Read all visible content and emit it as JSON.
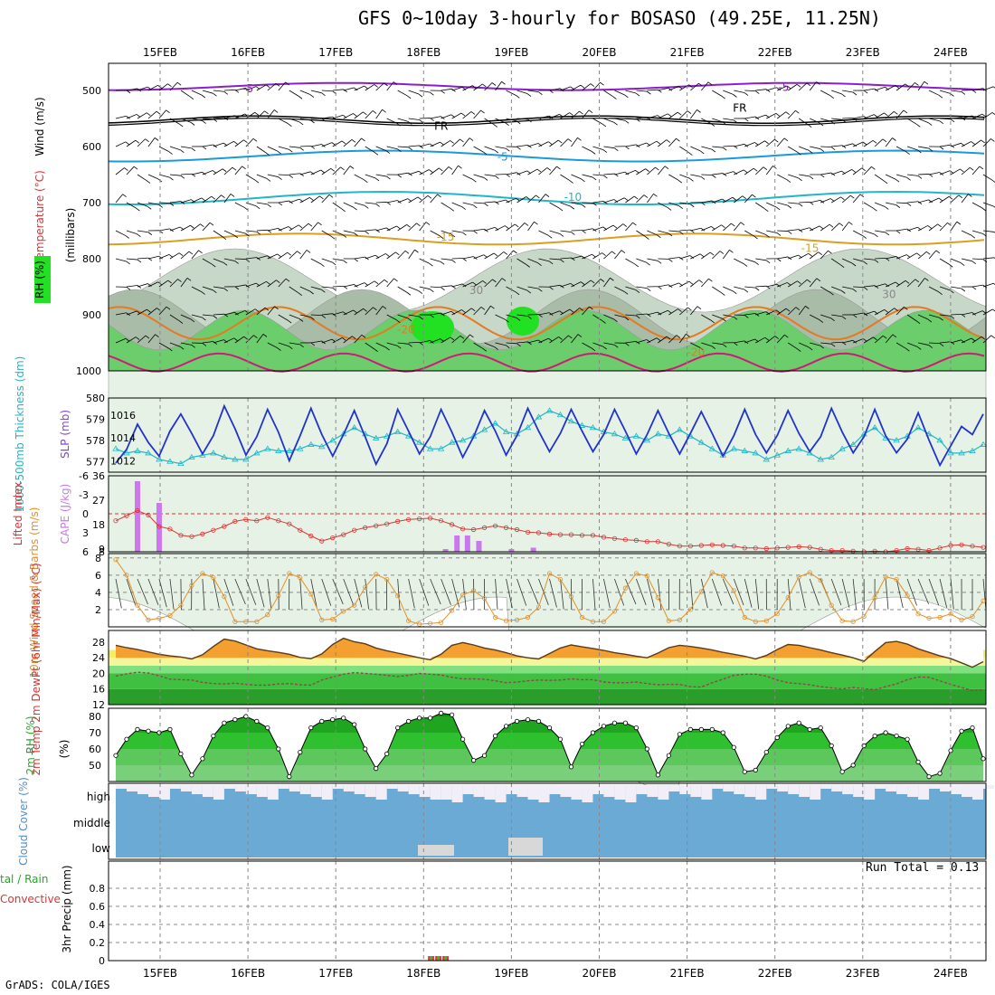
{
  "title": "GFS 0~10day 3-hourly for BOSASO (49.25E, 11.25N)",
  "footer": "GrADS: COLA/IGES",
  "run_total": "Run Total = 0.13",
  "dates": [
    "15FEB",
    "16FEB",
    "17FEB",
    "18FEB",
    "19FEB",
    "20FEB",
    "21FEB",
    "22FEB",
    "23FEB",
    "24FEB"
  ],
  "colors": {
    "grid": "#888888",
    "rh_light": "#e6f2e6",
    "rh_mid": "#c8d8c8",
    "rh_dark": "#a8bca8",
    "rh_green": "#6ccd6c",
    "rh_bright": "#22e022",
    "slp": "#2233cc",
    "thick": "#22b6c6",
    "li": "#dd3333",
    "cape": "#cc77ee",
    "wind10": "#e0902a",
    "temp": "#f3a030",
    "dew": "#50dd50",
    "rh2m": "#22cc22",
    "cloud": "#6aaad5",
    "precip_rain": "#33bb33",
    "precip_conv": "#ee3333"
  },
  "chart_data": [
    {
      "panel": "upper_air",
      "type": "heatmap",
      "ylabel_wind": "Wind (m/s)",
      "ylabel_temp": "Temperature (°C)",
      "ylabel_rh": "RH (%)",
      "ylabel_units": "(millibars)",
      "y_ticks": [
        "500",
        "600",
        "700",
        "800",
        "900",
        "1000"
      ],
      "ylim": [
        1000,
        470
      ],
      "isotherm_labels": [
        {
          "text": "-5",
          "p": 495,
          "day": 1.0
        },
        {
          "text": "-5",
          "p": 493,
          "day": 7.1
        },
        {
          "text": "FR",
          "p": 562,
          "day": 3.2
        },
        {
          "text": "FR",
          "p": 530,
          "day": 6.6
        },
        {
          "text": "-5",
          "p": 617,
          "day": 3.9
        },
        {
          "text": "-10",
          "p": 689,
          "day": 4.7
        },
        {
          "text": "-15",
          "p": 760,
          "day": 3.25
        },
        {
          "text": "-15",
          "p": 780,
          "day": 7.4
        },
        {
          "text": "-20",
          "p": 925,
          "day": 2.8
        },
        {
          "text": "-20",
          "p": 965,
          "day": 6.1
        },
        {
          "text": "30",
          "p": 855,
          "day": 3.6
        },
        {
          "text": "30",
          "p": 862,
          "day": 8.3
        }
      ]
    },
    {
      "panel": "slp_thickness",
      "type": "line",
      "ylabel_left": "1000-500mb Thickness (dm)",
      "ylabel_right": "SLP (mb)",
      "y_ticks_left": [
        "577",
        "578",
        "579",
        "580"
      ],
      "y_ticks_right": [
        "1012",
        "1014",
        "1016"
      ],
      "series": [
        {
          "name": "SLP (mb)",
          "ylim": [
            1011,
            1017.5
          ],
          "values": [
            1011.8,
            1013,
            1015.2,
            1013.6,
            1012.4,
            1014.6,
            1016.1,
            1014.4,
            1012.6,
            1014.2,
            1016.8,
            1014.8,
            1012.5,
            1014.1,
            1016.5,
            1014.5,
            1012,
            1014.2,
            1016.6,
            1014.3,
            1012.4,
            1014.3,
            1016.4,
            1014.1,
            1011.7,
            1013.5,
            1016.5,
            1014.6,
            1012.6,
            1014.1,
            1016.5,
            1014.5,
            1012.3,
            1014.1,
            1016.4,
            1014.6,
            1012.5,
            1014.2,
            1016.6,
            1014.6,
            1012.8,
            1014.4,
            1016.5,
            1014.6,
            1012.8,
            1014.3,
            1016.5,
            1014.6,
            1012.6,
            1014.3,
            1016.4,
            1014.4,
            1012.6,
            1014.4,
            1016.3,
            1014.4,
            1012.4,
            1014.2,
            1016.5,
            1014.3,
            1012.7,
            1014.2,
            1016.4,
            1014.4,
            1012.8,
            1014.1,
            1016.6,
            1014.5,
            1012.7,
            1014.1,
            1016.5,
            1014.2,
            1012.7,
            1013.9,
            1016.2,
            1013.8,
            1011.6,
            1013.3,
            1015,
            1014.3,
            1016.1
          ]
        },
        {
          "name": "1000-500mb Thickness (dm)",
          "ylim": [
            576.5,
            580
          ],
          "values": [
            577.6,
            577.4,
            577.5,
            577.4,
            577.1,
            577,
            576.9,
            577.2,
            577.3,
            577.4,
            577.2,
            577.1,
            577.1,
            577.4,
            577.6,
            577.5,
            577.5,
            577.6,
            577.8,
            577.7,
            578,
            578.3,
            578.6,
            578.3,
            578.1,
            578.2,
            578.4,
            578.2,
            577.9,
            577.6,
            577.6,
            577.9,
            578,
            578.2,
            578.5,
            578.8,
            578.4,
            578.3,
            578.6,
            579.1,
            579.4,
            579.2,
            578.9,
            578.7,
            578.6,
            578.4,
            578.3,
            578.1,
            578.2,
            578,
            578.3,
            578.2,
            578.5,
            578.2,
            577.9,
            577.6,
            577.3,
            577.6,
            577.5,
            577.4,
            577.1,
            577.3,
            577.5,
            577.6,
            577.4,
            577.1,
            577.2,
            577.6,
            577.8,
            578.3,
            578.6,
            578.1,
            578,
            578.2,
            578.6,
            578.3,
            578,
            577.4,
            577.4,
            577.5,
            577.8
          ]
        }
      ]
    },
    {
      "panel": "lifted_index_cape",
      "type": "bar",
      "ylabel_left": "Lifted Index",
      "ylabel_right": "CAPE (J/kg)",
      "y_ticks_left": [
        "-6",
        "-3",
        "0",
        "3",
        "6"
      ],
      "y_ticks_right": [
        "36",
        "27",
        "18",
        "9",
        "8"
      ],
      "series": [
        {
          "name": "Lifted Index",
          "ylim": [
            6,
            -6
          ],
          "values": [
            1.1,
            0.3,
            -0.5,
            0.2,
            2,
            2.4,
            3.4,
            3.6,
            3.2,
            2.6,
            2,
            1.2,
            0.9,
            1.1,
            0.6,
            1.1,
            1.6,
            2.6,
            3.5,
            4.3,
            3.8,
            3.3,
            2.6,
            2.2,
            1.9,
            1.6,
            1.2,
            0.9,
            0.8,
            0.7,
            1.1,
            1.7,
            2.4,
            2.5,
            2.2,
            1.9,
            2.2,
            2.5,
            2.9,
            3,
            3.2,
            3.3,
            3.3,
            3.4,
            3.4,
            3.7,
            3.9,
            4.1,
            4.2,
            4.4,
            4.4,
            4.8,
            5.1,
            5.1,
            5,
            4.9,
            5,
            5.1,
            5.4,
            5.4,
            5.5,
            5.4,
            5.3,
            5.2,
            5.3,
            5.6,
            5.8,
            5.8,
            5.9,
            6,
            5.9,
            6,
            5.8,
            5.5,
            5.6,
            5.8,
            5.4,
            5,
            4.9,
            5.1,
            5.3
          ]
        },
        {
          "name": "CAPE (J/kg)",
          "ylim": [
            8,
            36
          ],
          "values": [
            0,
            0,
            34,
            0,
            26,
            0,
            0,
            0,
            0,
            0,
            0,
            0,
            0,
            0,
            0,
            0,
            0,
            0,
            0,
            0,
            0,
            0,
            0,
            0,
            0,
            0,
            0,
            0,
            0,
            0,
            0,
            0,
            0,
            0,
            0,
            0,
            0,
            0,
            0,
            0,
            0,
            0,
            0,
            0,
            0,
            0,
            0,
            0,
            0,
            0,
            0,
            0,
            0,
            0,
            0,
            0,
            0,
            0,
            0,
            0,
            0,
            0,
            0,
            0,
            0,
            0,
            0,
            0,
            0,
            0,
            0,
            0,
            0,
            0,
            0,
            0,
            0,
            0,
            0,
            0,
            0
          ]
        }
      ],
      "cape_bars": [
        {
          "day": 3.25,
          "value": 9
        },
        {
          "day": 3.38,
          "value": 14
        },
        {
          "day": 3.5,
          "value": 14
        },
        {
          "day": 3.63,
          "value": 12
        },
        {
          "day": 4.0,
          "value": 9
        },
        {
          "day": 4.25,
          "value": 9.5
        }
      ]
    },
    {
      "panel": "wind10m",
      "type": "line",
      "ylabel": "10m Wind Speed & Barbs (m/s)",
      "y_ticks": [
        "2",
        "4",
        "6",
        "8"
      ],
      "ylim": [
        0,
        8.5
      ],
      "series": [
        {
          "name": "10m Wind Speed",
          "values": [
            7.8,
            6,
            2.5,
            0.8,
            1,
            1.3,
            2.5,
            4.8,
            6.2,
            5.7,
            3.5,
            0.6,
            0.6,
            0.6,
            1.4,
            3.6,
            6.2,
            5.7,
            3.8,
            0.8,
            0.9,
            1.8,
            2.5,
            4.6,
            6.1,
            5.5,
            3.6,
            0.7,
            0.3,
            0.4,
            0.5,
            1.9,
            3.7,
            4.2,
            3.3,
            1.1,
            0.7,
            0.8,
            1.1,
            2.3,
            6.2,
            5.5,
            3.5,
            1.1,
            0.6,
            0.6,
            1.8,
            4.5,
            6.2,
            5.9,
            3.4,
            0.7,
            0.8,
            2,
            4.1,
            6.3,
            5.9,
            4.2,
            1.1,
            0.6,
            0.7,
            1.5,
            3.4,
            5.8,
            6.3,
            5.4,
            2.5,
            0.7,
            0.6,
            1.2,
            3.4,
            5.8,
            5.5,
            3.6,
            1.5,
            1,
            1.1,
            1.5,
            0.8,
            1.2,
            3
          ]
        }
      ]
    },
    {
      "panel": "temp2m",
      "type": "area",
      "ylabel": "2m Temp 2m DewPt (6hr Min/Max) (°C)",
      "y_ticks": [
        "12",
        "16",
        "20",
        "24",
        "28"
      ],
      "ylim": [
        12,
        31
      ],
      "series": [
        {
          "name": "2m Temp",
          "values": [
            27.2,
            26.6,
            26.1,
            25.5,
            24.9,
            24.5,
            24.2,
            23.7,
            24.8,
            26.9,
            28.8,
            28.3,
            27.3,
            26.3,
            25.8,
            25.4,
            24.9,
            24.1,
            23.8,
            25,
            27.4,
            29,
            28.1,
            27.6,
            26.5,
            25.8,
            25.2,
            24.6,
            24,
            23.5,
            24.9,
            27.2,
            27.9,
            27.3,
            26.5,
            26,
            25.3,
            24.5,
            24,
            23.7,
            25.1,
            26.5,
            27.3,
            26.8,
            26.4,
            25.9,
            25.3,
            24.9,
            24.4,
            24,
            25.2,
            26.6,
            27.2,
            26.9,
            26.5,
            26,
            25.4,
            24.9,
            24.4,
            23.7,
            24.6,
            26.1,
            27.4,
            27.2,
            26.6,
            26,
            25.3,
            24.7,
            24,
            23.1,
            25.6,
            27.9,
            28.2,
            27.5,
            26.3,
            25.4,
            24.5,
            23.8,
            22.7,
            21.6,
            23
          ]
        },
        {
          "name": "2m DewPt",
          "values": [
            19.3,
            19.9,
            20.3,
            20.1,
            19.4,
            18.5,
            18.4,
            18.3,
            17.7,
            17.4,
            17.3,
            17.5,
            17.2,
            17,
            17,
            17.3,
            17.4,
            17.1,
            17,
            18.3,
            19.1,
            19.8,
            20.2,
            20,
            19.8,
            19.5,
            19.2,
            19.5,
            20,
            19.8,
            19.6,
            19,
            18.6,
            18.6,
            18.5,
            18.1,
            17.6,
            17.8,
            18.1,
            18.3,
            18.2,
            18.3,
            18.6,
            18.4,
            18.4,
            17.8,
            17.6,
            17.6,
            17.8,
            17.4,
            17.1,
            17.2,
            17.2,
            16.6,
            16.5,
            17.6,
            18.5,
            19.5,
            19.8,
            19.8,
            19.3,
            18.3,
            17.6,
            17.4,
            17.1,
            16.6,
            16.3,
            16,
            16.4,
            16.1,
            15.8,
            16.6,
            17.3,
            18.4,
            19.1,
            19,
            18.1,
            17.2,
            16.4,
            15.6,
            15.8
          ]
        }
      ]
    },
    {
      "panel": "rh2m",
      "type": "area",
      "ylabel": "2m RH (%)",
      "y_ticks": [
        "50",
        "60",
        "70",
        "80"
      ],
      "ylim": [
        40,
        85
      ],
      "series": [
        {
          "name": "2m RH",
          "values": [
            56,
            66,
            72,
            71,
            70,
            72,
            57,
            44,
            54,
            68,
            76,
            78,
            80,
            77,
            73,
            60,
            43,
            58,
            73,
            77,
            78,
            79,
            75,
            60,
            48,
            57,
            73,
            77,
            79,
            79,
            82,
            81,
            66,
            53,
            56,
            68,
            74,
            77,
            78,
            77,
            73,
            66,
            49,
            63,
            70,
            74,
            76,
            76,
            73,
            60,
            44,
            56,
            69,
            72,
            72,
            72,
            70,
            61,
            46,
            47,
            58,
            67,
            74,
            76,
            72,
            73,
            62,
            46,
            50,
            62,
            68,
            70,
            68,
            66,
            52,
            43,
            45,
            59,
            71,
            73,
            54
          ]
        }
      ]
    },
    {
      "panel": "cloud_cover",
      "type": "bar",
      "ylabel": "Cloud Cover (%)",
      "levels": [
        "high",
        "middle",
        "low"
      ]
    },
    {
      "panel": "precip",
      "type": "bar",
      "ylabel_left": "Total / Rain Convective",
      "ylabel": "3hr Precip (mm)",
      "y_ticks": [
        "0",
        "0.2",
        "0.4",
        "0.6",
        "0.8"
      ],
      "ylim": [
        0,
        1.0
      ],
      "series": [
        {
          "name": "3hr Precip",
          "values": [
            0.05,
            0.05,
            0.05
          ]
        }
      ]
    }
  ]
}
